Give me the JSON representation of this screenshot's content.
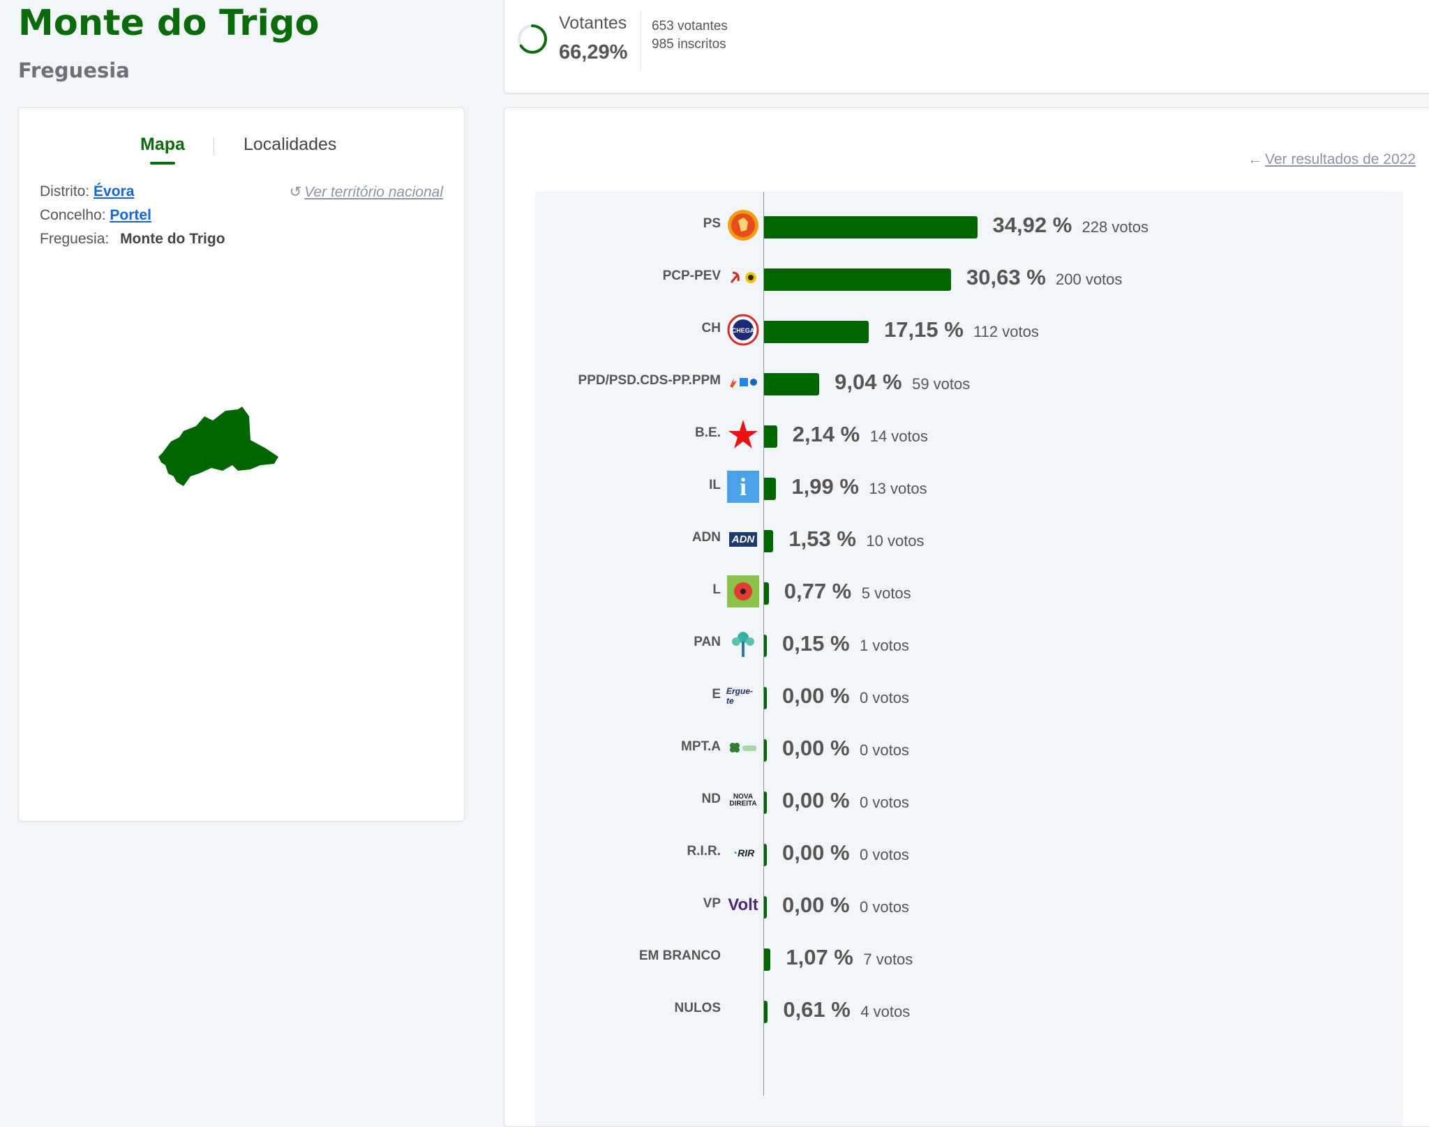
{
  "header": {
    "title": "Monte do Trigo",
    "subtitle": "Freguesia"
  },
  "map_card": {
    "tabs": [
      {
        "label": "Mapa",
        "active": true
      },
      {
        "label": "Localidades",
        "active": false
      }
    ],
    "distrito_label": "Distrito:",
    "distrito_value": "Évora",
    "concelho_label": "Concelho:",
    "concelho_value": "Portel",
    "freguesia_label": "Freguesia:",
    "freguesia_value": "Monte do Trigo",
    "national_link": "Ver território nacional",
    "map_color": "#006400"
  },
  "stats": {
    "votantes_label": "Votantes",
    "votantes_pct": "66,29%",
    "votantes_count": "653 votantes",
    "inscritos_count": "985 inscritos",
    "ring_color": "#0b6b0b"
  },
  "results": {
    "back_link": "Ver resultados de 2022",
    "bar_color": "#006400"
  },
  "chart_data": {
    "type": "bar",
    "orientation": "horizontal",
    "categories": [
      "PS",
      "PCP-PEV",
      "CH",
      "PPD/PSD.CDS-PP.PPM",
      "B.E.",
      "IL",
      "ADN",
      "L",
      "PAN",
      "E",
      "MPT.A",
      "ND",
      "R.I.R.",
      "VP",
      "EM BRANCO",
      "NULOS"
    ],
    "values": [
      34.92,
      30.63,
      17.15,
      9.04,
      2.14,
      1.99,
      1.53,
      0.77,
      0.15,
      0.0,
      0.0,
      0.0,
      0.0,
      0.0,
      1.07,
      0.61
    ],
    "pct_labels": [
      "34,92 %",
      "30,63 %",
      "17,15 %",
      "9,04 %",
      "2,14 %",
      "1,99 %",
      "1,53 %",
      "0,77 %",
      "0,15 %",
      "0,00 %",
      "0,00 %",
      "0,00 %",
      "0,00 %",
      "0,00 %",
      "1,07 %",
      "0,61 %"
    ],
    "votes_labels": [
      "228 votos",
      "200 votos",
      "112 votos",
      "59 votos",
      "14 votos",
      "13 votos",
      "10 votos",
      "5 votos",
      "1 votos",
      "0 votos",
      "0 votos",
      "0 votos",
      "0 votos",
      "0 votos",
      "7 votos",
      "4 votos"
    ],
    "logos": [
      "ps-logo-icon",
      "pcp-pev-logo-icon",
      "chega-logo-icon",
      "ad-logo-icon",
      "be-star-icon",
      "il-logo-icon",
      "adn-logo-icon",
      "livre-poppy-icon",
      "pan-tree-icon",
      "ergue-te-logo-icon",
      "mpt-clover-icon",
      "nova-direita-logo-icon",
      "rir-logo-icon",
      "volt-logo-icon",
      "",
      ""
    ],
    "logo_texts": [
      "",
      "",
      "CHEGA",
      "",
      "",
      "i",
      "ADN",
      "",
      "",
      "Ergue-te",
      "",
      "NOVA DIREITA",
      "RIR",
      "Volt",
      "",
      ""
    ]
  }
}
